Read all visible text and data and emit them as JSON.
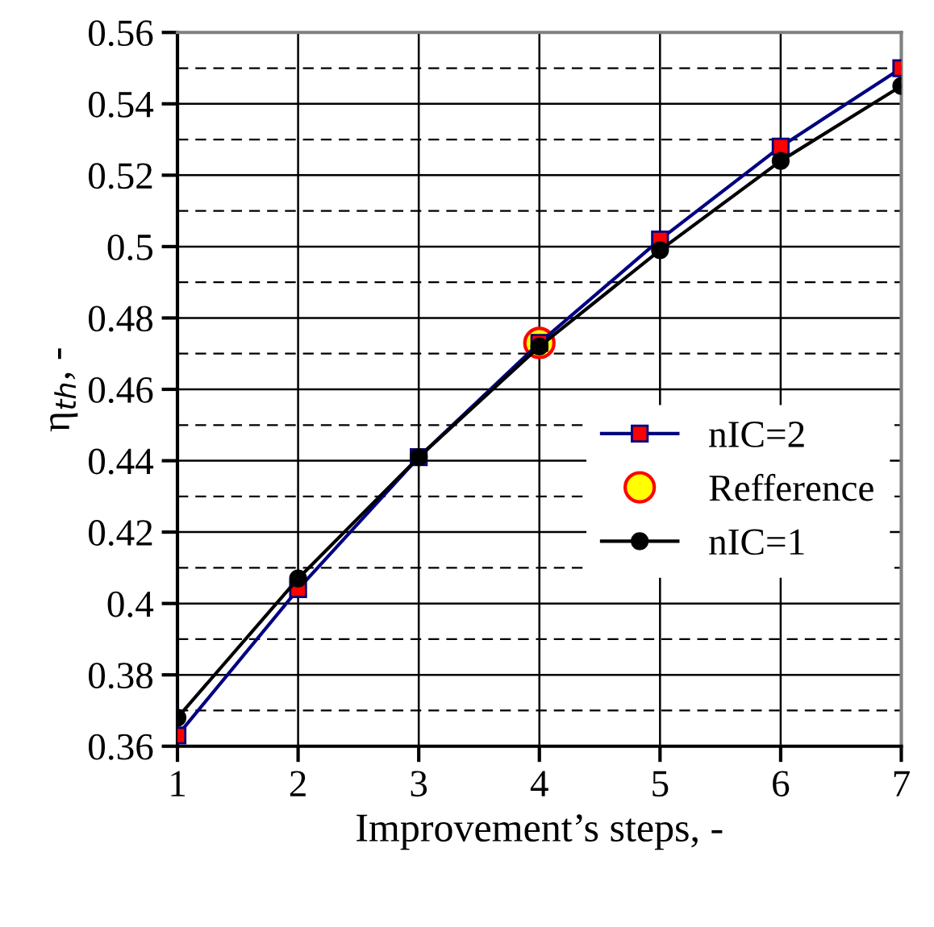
{
  "chart_data": {
    "type": "line",
    "xlabel": "Improvement’s steps, -",
    "ylabel": "η$_{th}$, -",
    "x": [
      1,
      2,
      3,
      4,
      5,
      6,
      7
    ],
    "series": [
      {
        "name": "nIC=2",
        "color": "#000080",
        "marker": "square",
        "values": [
          0.363,
          0.404,
          0.441,
          0.473,
          0.502,
          0.528,
          0.55
        ]
      },
      {
        "name": "Refference",
        "type": "scatter",
        "color": "#ffff00",
        "marker": "circle",
        "x": [
          4
        ],
        "values": [
          0.473
        ]
      },
      {
        "name": "nIC=1",
        "color": "#000000",
        "marker": "circle",
        "values": [
          0.368,
          0.407,
          0.441,
          0.472,
          0.499,
          0.524,
          0.545
        ]
      }
    ],
    "xlim": [
      1,
      7
    ],
    "xticks": [
      1,
      2,
      3,
      4,
      5,
      6,
      7
    ],
    "ylim": [
      0.36,
      0.56
    ],
    "yticks": [
      0.36,
      0.38,
      0.4,
      0.42,
      0.44,
      0.46,
      0.48,
      0.5,
      0.52,
      0.54,
      0.56
    ],
    "grid": true,
    "legend": "lower right",
    "line_style": "solid"
  }
}
